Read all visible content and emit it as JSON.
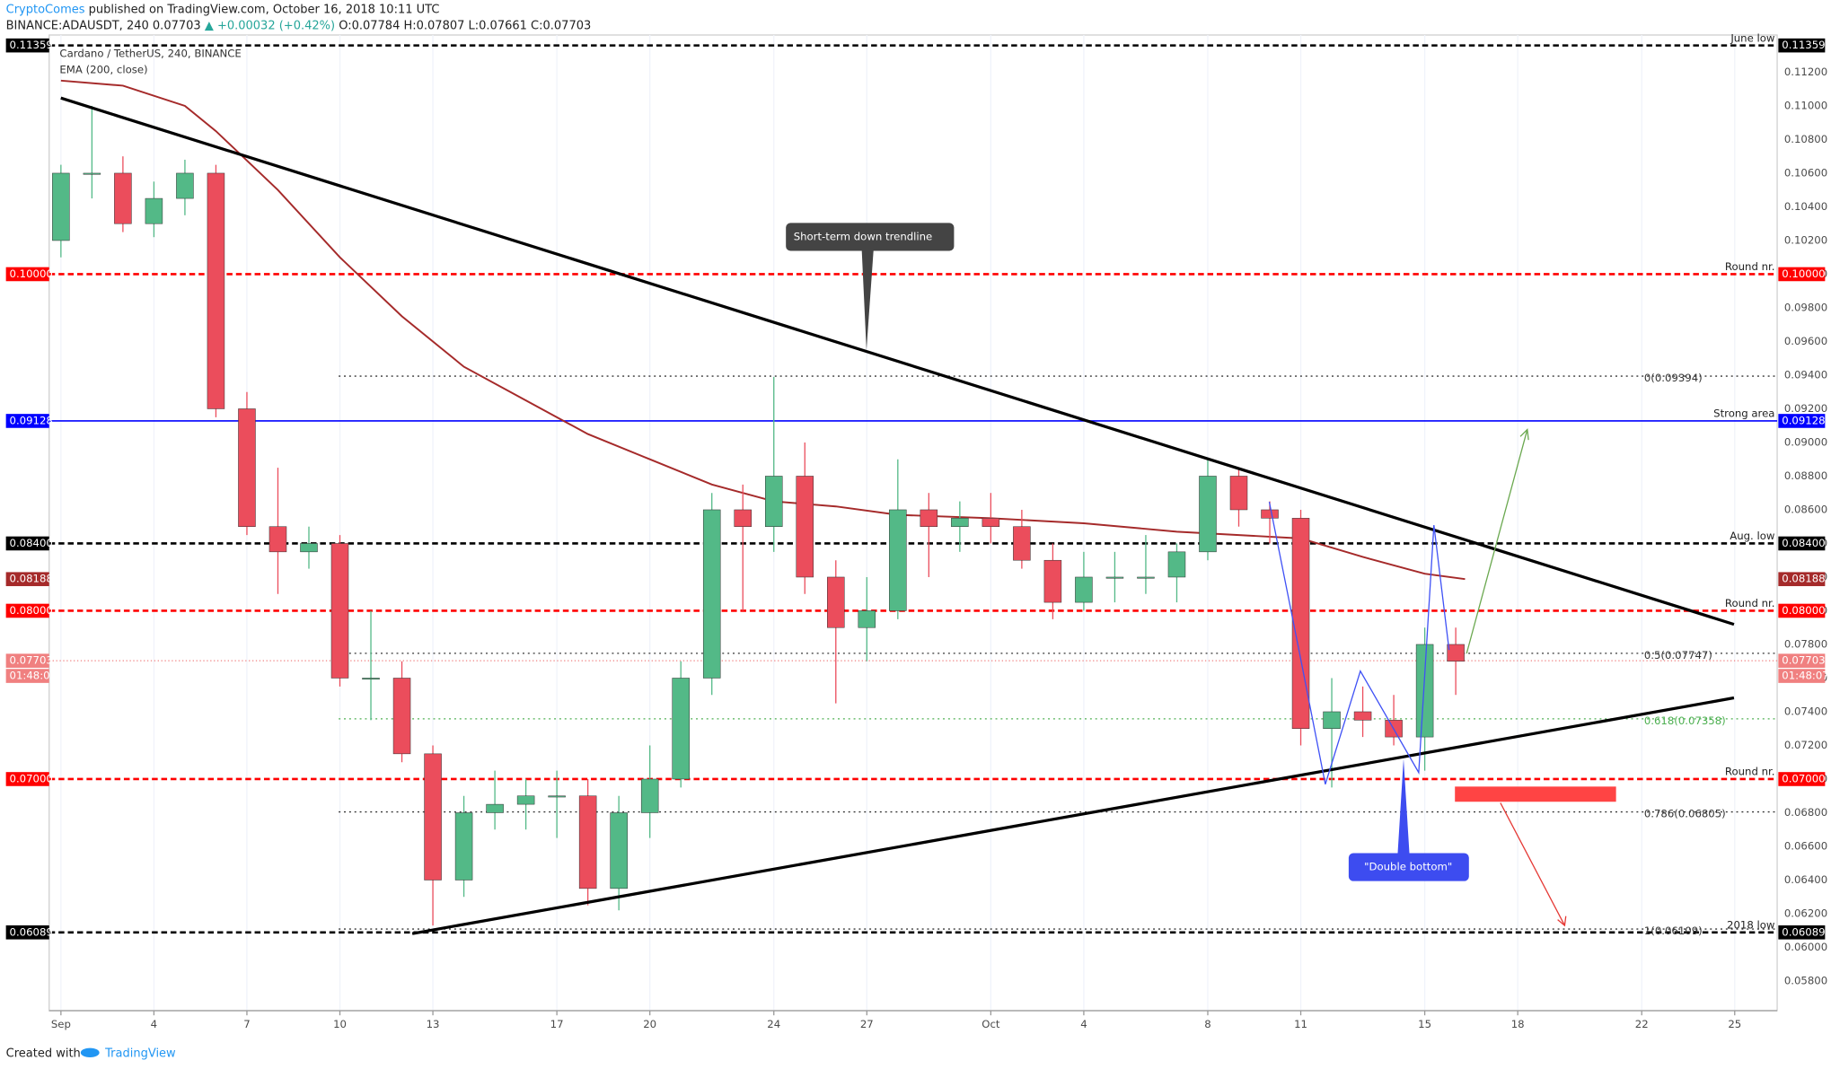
{
  "header": {
    "author": "CryptoComes",
    "published": "published on TradingView.com, October 16, 2018 10:11 UTC",
    "symbol": "BINANCE:ADAUSDT, 240",
    "last": "0.07703",
    "change": "▲ +0.00032 (+0.42%)",
    "ohlc": "O:0.07784 H:0.07807 L:0.07661 C:0.07703"
  },
  "footer": {
    "created": "Created with",
    "brand": "TradingView"
  },
  "chart_data": {
    "type": "candlestick",
    "title": "Cardano / TetherUS, 240, BINANCE",
    "up_color": "#53b987",
    "down_color": "#eb4d5c",
    "grid": true,
    "xlim": [
      -0.38,
      55.37
    ],
    "ylim": [
      0.05624,
      0.11421
    ],
    "xticks": [
      {
        "value": 0,
        "label": "Sep"
      },
      {
        "value": 3,
        "label": "4"
      },
      {
        "value": 6,
        "label": "7"
      },
      {
        "value": 9,
        "label": "10"
      },
      {
        "value": 12,
        "label": "13"
      },
      {
        "value": 16,
        "label": "17"
      },
      {
        "value": 19,
        "label": "20"
      },
      {
        "value": 23,
        "label": "24"
      },
      {
        "value": 26,
        "label": "27"
      },
      {
        "value": 30,
        "label": "Oct"
      },
      {
        "value": 33,
        "label": "4"
      },
      {
        "value": 37,
        "label": "8"
      },
      {
        "value": 40,
        "label": "11"
      },
      {
        "value": 44,
        "label": "15"
      },
      {
        "value": 47,
        "label": "18"
      },
      {
        "value": 51,
        "label": "22"
      },
      {
        "value": 54,
        "label": "25"
      }
    ],
    "yticks": [
      {
        "value": 0.058,
        "label": "0.05800"
      },
      {
        "value": 0.06,
        "label": "0.06000"
      },
      {
        "value": 0.062,
        "label": "0.06200"
      },
      {
        "value": 0.064,
        "label": "0.06400"
      },
      {
        "value": 0.066,
        "label": "0.06600"
      },
      {
        "value": 0.068,
        "label": "0.06800"
      },
      {
        "value": 0.07,
        "label": "0.07000"
      },
      {
        "value": 0.072,
        "label": "0.07200"
      },
      {
        "value": 0.074,
        "label": "0.07400"
      },
      {
        "value": 0.076,
        "label": "0.07600"
      },
      {
        "value": 0.078,
        "label": "0.07800"
      },
      {
        "value": 0.08,
        "label": "0.08000"
      },
      {
        "value": 0.082,
        "label": "0.08200"
      },
      {
        "value": 0.084,
        "label": "0.08400"
      },
      {
        "value": 0.086,
        "label": "0.08600"
      },
      {
        "value": 0.088,
        "label": "0.08800"
      },
      {
        "value": 0.09,
        "label": "0.09000"
      },
      {
        "value": 0.092,
        "label": "0.09200"
      },
      {
        "value": 0.094,
        "label": "0.09400"
      },
      {
        "value": 0.096,
        "label": "0.09600"
      },
      {
        "value": 0.098,
        "label": "0.09800"
      },
      {
        "value": 0.1,
        "label": "0.10000"
      },
      {
        "value": 0.102,
        "label": "0.10200"
      },
      {
        "value": 0.104,
        "label": "0.10400"
      },
      {
        "value": 0.106,
        "label": "0.10600"
      },
      {
        "value": 0.108,
        "label": "0.10800"
      },
      {
        "value": 0.11,
        "label": "0.11000"
      },
      {
        "value": 0.112,
        "label": "0.11200"
      }
    ],
    "candles": {
      "x": [
        0,
        1,
        2,
        3,
        4,
        5,
        6,
        7,
        8,
        9,
        10,
        11,
        12,
        13,
        14,
        15,
        16,
        17,
        18,
        19,
        20,
        21,
        22,
        23,
        24,
        25,
        26,
        27,
        28,
        29,
        30,
        31,
        32,
        33,
        34,
        35,
        36,
        37,
        38,
        39,
        40,
        41,
        42,
        43,
        44,
        45
      ],
      "open": [
        0.102,
        0.106,
        0.106,
        0.103,
        0.1045,
        0.106,
        0.092,
        0.085,
        0.0835,
        0.084,
        0.076,
        0.076,
        0.0715,
        0.064,
        0.068,
        0.0685,
        0.069,
        0.069,
        0.0635,
        0.068,
        0.07,
        0.076,
        0.086,
        0.085,
        0.088,
        0.082,
        0.079,
        0.08,
        0.086,
        0.085,
        0.0855,
        0.085,
        0.083,
        0.0805,
        0.082,
        0.082,
        0.082,
        0.0835,
        0.088,
        0.086,
        0.0855,
        0.073,
        0.074,
        0.0735,
        0.0725,
        0.078
      ],
      "high": [
        0.1065,
        0.11,
        0.107,
        0.1055,
        0.1068,
        0.1065,
        0.093,
        0.0885,
        0.085,
        0.0845,
        0.08,
        0.077,
        0.072,
        0.069,
        0.0705,
        0.07,
        0.0705,
        0.07,
        0.069,
        0.072,
        0.077,
        0.087,
        0.0875,
        0.0939,
        0.09,
        0.083,
        0.082,
        0.089,
        0.087,
        0.0865,
        0.087,
        0.086,
        0.084,
        0.0835,
        0.0835,
        0.0845,
        0.084,
        0.089,
        0.0885,
        0.0865,
        0.086,
        0.076,
        0.0755,
        0.075,
        0.079,
        0.079
      ],
      "low": [
        0.101,
        0.1045,
        0.1025,
        0.1022,
        0.1035,
        0.0915,
        0.0845,
        0.081,
        0.0825,
        0.0755,
        0.0735,
        0.071,
        0.0613,
        0.063,
        0.067,
        0.067,
        0.0665,
        0.0625,
        0.0622,
        0.0665,
        0.0695,
        0.075,
        0.08,
        0.0835,
        0.081,
        0.0745,
        0.077,
        0.0795,
        0.082,
        0.0835,
        0.084,
        0.0825,
        0.0795,
        0.08,
        0.0805,
        0.081,
        0.0805,
        0.083,
        0.085,
        0.084,
        0.072,
        0.0695,
        0.0725,
        0.072,
        0.0705,
        0.075
      ],
      "close": [
        0.106,
        0.106,
        0.103,
        0.1045,
        0.106,
        0.092,
        0.085,
        0.0835,
        0.084,
        0.076,
        0.076,
        0.0715,
        0.064,
        0.068,
        0.0685,
        0.069,
        0.069,
        0.0635,
        0.068,
        0.07,
        0.076,
        0.086,
        0.085,
        0.088,
        0.082,
        0.079,
        0.08,
        0.086,
        0.085,
        0.0855,
        0.085,
        0.083,
        0.0805,
        0.082,
        0.082,
        0.082,
        0.0835,
        0.088,
        0.086,
        0.0855,
        0.073,
        0.074,
        0.0735,
        0.0725,
        0.078,
        0.077
      ]
    },
    "ema": {
      "name": "EMA (200, close)",
      "color": "#a52a2a",
      "tag": "0.08188",
      "x": [
        0,
        2,
        4,
        5,
        7,
        9,
        11,
        13,
        15,
        17,
        19,
        21,
        23,
        25,
        27,
        30,
        33,
        36,
        38,
        40,
        42,
        44,
        45.3
      ],
      "values": [
        0.1115,
        0.1112,
        0.11,
        0.1085,
        0.105,
        0.101,
        0.0975,
        0.0945,
        0.0925,
        0.0905,
        0.089,
        0.0875,
        0.0865,
        0.0862,
        0.0857,
        0.0855,
        0.0852,
        0.0847,
        0.0845,
        0.0843,
        0.0832,
        0.0822,
        0.08188
      ]
    },
    "price_line": {
      "value": 0.07703,
      "tag": "0.07703",
      "countdown": "01:48:07",
      "color": "#f08080"
    },
    "levels": [
      {
        "value": 0.11359,
        "tag": "0.11359",
        "label": "June low",
        "color": "#000000",
        "style": "dashed"
      },
      {
        "value": 0.1,
        "tag": "0.10000",
        "label": "Round nr.",
        "color": "#ff0000",
        "style": "dashed"
      },
      {
        "value": 0.09128,
        "tag": "0.09128",
        "label": "Strong area",
        "color": "#0000ff",
        "style": "solid"
      },
      {
        "value": 0.084,
        "tag": "0.08400",
        "label": "Aug. low",
        "color": "#000000",
        "style": "dashed"
      },
      {
        "value": 0.08,
        "tag": "0.08000",
        "label": "Round nr.",
        "color": "#ff0000",
        "style": "dashed"
      },
      {
        "value": 0.07,
        "tag": "0.07000",
        "label": "Round nr.",
        "color": "#ff0000",
        "style": "dashed"
      },
      {
        "value": 0.06089,
        "tag": "0.06089",
        "label": "2018 low",
        "color": "#000000",
        "style": "dashed"
      }
    ],
    "fib": [
      {
        "value": 0.09394,
        "label": "0(0.09394)",
        "color": "#333333"
      },
      {
        "value": 0.07747,
        "label": "0.5(0.07747)",
        "color": "#333333"
      },
      {
        "value": 0.07358,
        "label": "0.618(0.07358)",
        "color": "#4caf50"
      },
      {
        "value": 0.06805,
        "label": "0.786(0.06805)",
        "color": "#333333"
      },
      {
        "value": 0.06109,
        "label": "1(0.06109)",
        "color": "#333333"
      }
    ],
    "annotations": {
      "trendline": "Short-term down trendline",
      "pattern": "\"Double bottom\""
    }
  }
}
